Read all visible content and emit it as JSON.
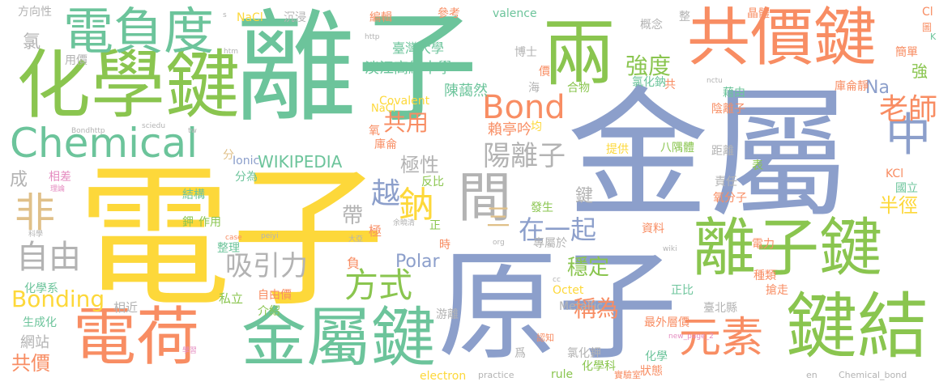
{
  "palette": {
    "green": "#8ac54f",
    "teal": "#6cc49b",
    "blue": "#8c9fcb",
    "orange": "#f88d63",
    "yellow": "#fdd83a",
    "gray": "#b3b3b3",
    "tan": "#e0c089",
    "pink": "#e58cc0"
  },
  "words": [
    {
      "text": "離子",
      "color": "teal"
    },
    {
      "text": "金屬",
      "color": "blue"
    },
    {
      "text": "電子",
      "color": "yellow"
    },
    {
      "text": "原子",
      "color": "blue"
    },
    {
      "text": "共價鍵",
      "color": "orange"
    },
    {
      "text": "化學鍵",
      "color": "green"
    },
    {
      "text": "電負度",
      "color": "teal"
    },
    {
      "text": "兩",
      "color": "green"
    },
    {
      "text": "離子鍵",
      "color": "green"
    },
    {
      "text": "鍵結",
      "color": "green"
    },
    {
      "text": "金屬鍵",
      "color": "teal"
    },
    {
      "text": "電荷",
      "color": "orange"
    },
    {
      "text": "Chemical",
      "color": "teal"
    },
    {
      "text": "Bond",
      "color": "orange"
    },
    {
      "text": "間",
      "color": "gray"
    },
    {
      "text": "元素",
      "color": "orange"
    },
    {
      "text": "中",
      "color": "blue"
    },
    {
      "text": "非",
      "color": "tan"
    },
    {
      "text": "自由",
      "color": "gray"
    },
    {
      "text": "方式",
      "color": "green"
    },
    {
      "text": "吸引力",
      "color": "gray"
    },
    {
      "text": "陽離子",
      "color": "gray"
    },
    {
      "text": "在一起",
      "color": "blue"
    },
    {
      "text": "老師",
      "color": "orange"
    },
    {
      "text": "強度",
      "color": "green"
    },
    {
      "text": "半徑",
      "color": "yellow"
    },
    {
      "text": "鈉",
      "color": "yellow"
    },
    {
      "text": "越",
      "color": "blue"
    },
    {
      "text": "三",
      "color": "tan"
    },
    {
      "text": "Bonding",
      "color": "yellow"
    },
    {
      "text": "共價",
      "color": "orange"
    },
    {
      "text": "稱為",
      "color": "orange"
    },
    {
      "text": "穩定",
      "color": "green"
    },
    {
      "text": "共用",
      "color": "orange"
    },
    {
      "text": "極性",
      "color": "gray"
    },
    {
      "text": "Na",
      "color": "blue"
    },
    {
      "text": "Polar",
      "color": "blue"
    },
    {
      "text": "WIKIPEDIA",
      "color": "teal"
    },
    {
      "text": "淡江高級中學",
      "color": "teal"
    },
    {
      "text": "臺灣大學",
      "color": "teal"
    },
    {
      "text": "陳藹然",
      "color": "teal"
    },
    {
      "text": "帶",
      "color": "gray"
    },
    {
      "text": "鍵",
      "color": "gray"
    },
    {
      "text": "賴亭吟",
      "color": "orange"
    },
    {
      "text": "氯",
      "color": "gray"
    },
    {
      "text": "成",
      "color": "gray"
    },
    {
      "text": "網站",
      "color": "gray"
    },
    {
      "text": "化學系",
      "color": "teal"
    },
    {
      "text": "生成化",
      "color": "teal"
    },
    {
      "text": "相近",
      "color": "gray"
    },
    {
      "text": "私立",
      "color": "green"
    },
    {
      "text": "自由價",
      "color": "orange"
    },
    {
      "text": "介紹",
      "color": "green"
    },
    {
      "text": "游離",
      "color": "gray"
    },
    {
      "text": "用價",
      "color": "gray"
    },
    {
      "text": "方向性",
      "color": "gray"
    },
    {
      "text": "分",
      "color": "tan"
    },
    {
      "text": "分為",
      "color": "teal"
    },
    {
      "text": "結構",
      "color": "teal"
    },
    {
      "text": "整理",
      "color": "teal"
    },
    {
      "text": "作用",
      "color": "green"
    },
    {
      "text": "鉀",
      "color": "green"
    },
    {
      "text": "反比",
      "color": "green"
    },
    {
      "text": "正",
      "color": "green"
    },
    {
      "text": "極",
      "color": "orange"
    },
    {
      "text": "負",
      "color": "orange"
    },
    {
      "text": "時",
      "color": "orange"
    },
    {
      "text": "發生",
      "color": "green"
    },
    {
      "text": "專屬於",
      "color": "gray"
    },
    {
      "text": "資料",
      "color": "orange"
    },
    {
      "text": "Octet",
      "color": "yellow"
    },
    {
      "text": "Metallic",
      "color": "gray"
    },
    {
      "text": "rule",
      "color": "green"
    },
    {
      "text": "化學科",
      "color": "green"
    },
    {
      "text": "electron",
      "color": "yellow"
    },
    {
      "text": "氯化鉀",
      "color": "gray"
    },
    {
      "text": "爲",
      "color": "gray"
    },
    {
      "text": "Covalent",
      "color": "yellow"
    },
    {
      "text": "Ionic",
      "color": "blue"
    },
    {
      "text": "氧",
      "color": "orange"
    },
    {
      "text": "庫侖",
      "color": "orange"
    },
    {
      "text": "均",
      "color": "yellow"
    },
    {
      "text": "提供",
      "color": "yellow"
    },
    {
      "text": "八隅體",
      "color": "green"
    },
    {
      "text": "距離",
      "color": "gray"
    },
    {
      "text": "責任",
      "color": "gray"
    },
    {
      "text": "氧分子",
      "color": "orange"
    },
    {
      "text": "表",
      "color": "green"
    },
    {
      "text": "KCl",
      "color": "orange"
    },
    {
      "text": "國立",
      "color": "teal"
    },
    {
      "text": "電力",
      "color": "orange"
    },
    {
      "text": "種類",
      "color": "orange"
    },
    {
      "text": "搶走",
      "color": "orange"
    },
    {
      "text": "正比",
      "color": "teal"
    },
    {
      "text": "最外層價",
      "color": "orange"
    },
    {
      "text": "臺北縣",
      "color": "gray"
    },
    {
      "text": "化學",
      "color": "teal"
    },
    {
      "text": "狀態",
      "color": "orange"
    },
    {
      "text": "實驗室",
      "color": "orange"
    },
    {
      "text": "認知",
      "color": "orange"
    },
    {
      "text": "博士",
      "color": "gray"
    },
    {
      "text": "價",
      "color": "orange"
    },
    {
      "text": "合物",
      "color": "green"
    },
    {
      "text": "海",
      "color": "gray"
    },
    {
      "text": "共",
      "color": "orange"
    },
    {
      "text": "藉由",
      "color": "teal"
    },
    {
      "text": "庫侖靜",
      "color": "orange"
    },
    {
      "text": "陰離子",
      "color": "orange"
    },
    {
      "text": "強",
      "color": "green"
    },
    {
      "text": "簡單",
      "color": "orange"
    },
    {
      "text": "氯化鈉",
      "color": "teal"
    },
    {
      "text": "概念",
      "color": "gray"
    },
    {
      "text": "整",
      "color": "gray"
    },
    {
      "text": "晶體",
      "color": "orange"
    },
    {
      "text": "參考",
      "color": "orange"
    },
    {
      "text": "valence",
      "color": "teal"
    },
    {
      "text": "編輯",
      "color": "orange"
    },
    {
      "text": "沉浸",
      "color": "gray"
    },
    {
      "text": "NaCl",
      "color": "yellow"
    },
    {
      "text": "NaCl",
      "color": "yellow"
    },
    {
      "text": "s",
      "color": "gray"
    },
    {
      "text": "http",
      "color": "gray"
    },
    {
      "text": "htm",
      "color": "gray"
    },
    {
      "text": "Bondhttp",
      "color": "gray"
    },
    {
      "text": "sciedu",
      "color": "gray"
    },
    {
      "text": "tw",
      "color": "gray"
    },
    {
      "text": "nctu",
      "color": "gray"
    },
    {
      "text": "Cl",
      "color": "orange"
    },
    {
      "text": "圖",
      "color": "orange"
    },
    {
      "text": "K",
      "color": "teal"
    },
    {
      "text": "相差",
      "color": "pink"
    },
    {
      "text": "理論",
      "color": "pink"
    },
    {
      "text": "科學",
      "color": "gray"
    },
    {
      "text": "case",
      "color": "orange"
    },
    {
      "text": "peiyi",
      "color": "gray"
    },
    {
      "text": "org",
      "color": "gray"
    },
    {
      "text": "余曉清",
      "color": "gray"
    },
    {
      "text": "大亞",
      "color": "gray"
    },
    {
      "text": "wiki",
      "color": "gray"
    },
    {
      "text": "cc",
      "color": "gray"
    },
    {
      "text": "new_page_2",
      "color": "pink"
    },
    {
      "text": "學習",
      "color": "pink"
    },
    {
      "text": "practice",
      "color": "gray"
    },
    {
      "text": "en",
      "color": "gray"
    },
    {
      "text": "Chemical_bond",
      "color": "gray"
    }
  ]
}
